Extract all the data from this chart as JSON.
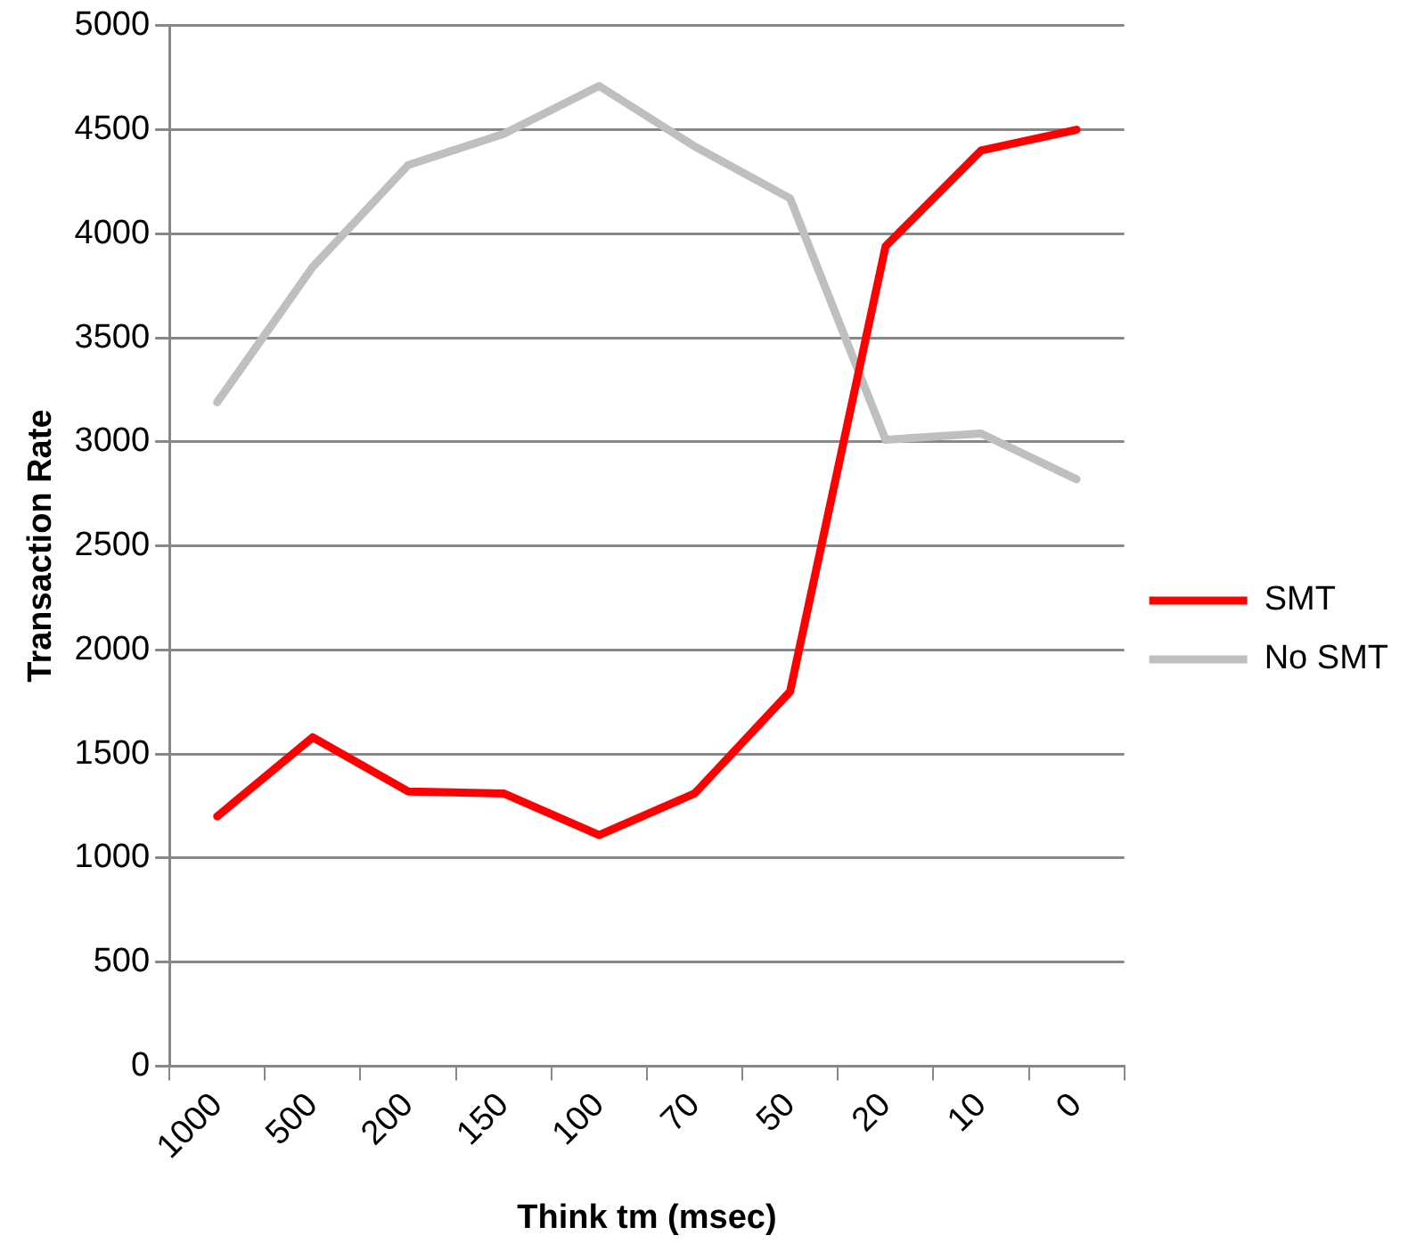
{
  "chart_data": {
    "type": "line",
    "xlabel": "Think tm (msec)",
    "ylabel": "Transaction Rate",
    "categories": [
      "1000",
      "500",
      "200",
      "150",
      "100",
      "70",
      "50",
      "20",
      "10",
      "0"
    ],
    "series": [
      {
        "name": "SMT",
        "color": "#ff0000",
        "values": [
          1200,
          1580,
          1320,
          1310,
          1110,
          1310,
          1800,
          3940,
          4400,
          4500
        ]
      },
      {
        "name": "No SMT",
        "color": "#bfbfbf",
        "values": [
          3190,
          3840,
          4330,
          4480,
          4710,
          4420,
          4170,
          3010,
          3040,
          2820
        ]
      }
    ],
    "ylim": [
      0,
      5000
    ],
    "yticks": [
      0,
      500,
      1000,
      1500,
      2000,
      2500,
      3000,
      3500,
      4000,
      4500,
      5000
    ],
    "grid": "y",
    "legend": "right",
    "marker": "none",
    "line_style": "solid"
  }
}
